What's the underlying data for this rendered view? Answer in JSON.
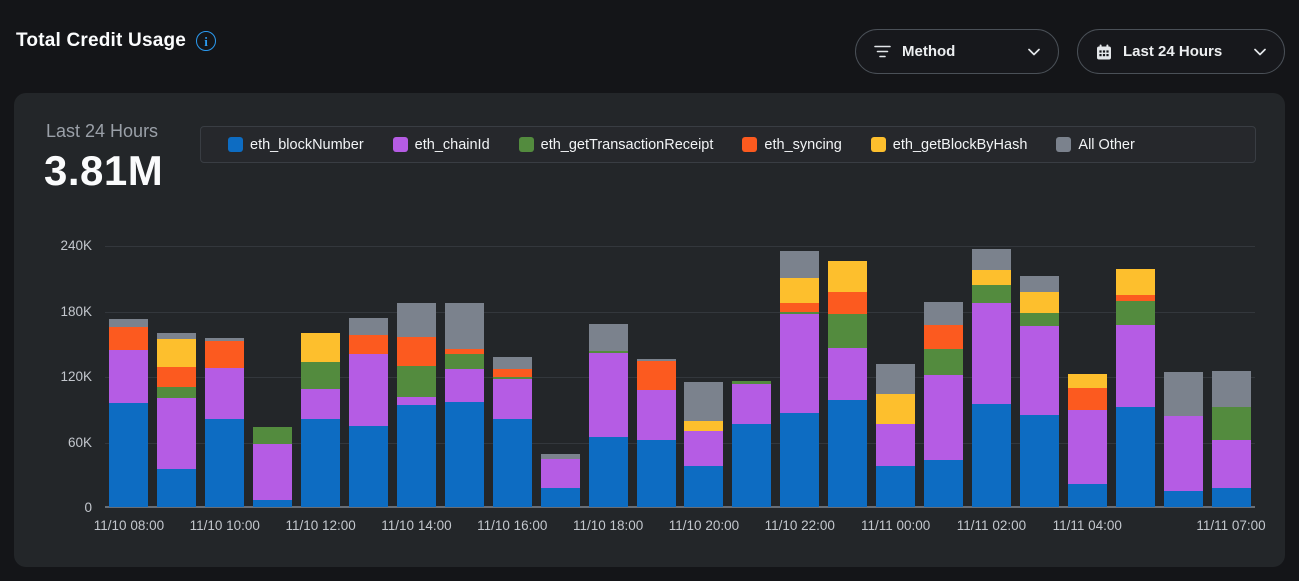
{
  "header": {
    "title": "Total Credit Usage"
  },
  "filters": {
    "method": {
      "label": "Method",
      "icon": "filter-icon"
    },
    "range": {
      "label": "Last 24 Hours",
      "icon": "calendar-icon"
    }
  },
  "summary": {
    "period_label": "Last 24 Hours",
    "total_value": "3.81M"
  },
  "colors": {
    "page_bg": "#141518",
    "card_bg": "#232629",
    "accent_info": "#2b9af0",
    "muted_text": "#9aa0a8",
    "axis_text": "#c3c7cd"
  },
  "chart_data": {
    "type": "bar",
    "stacked": true,
    "title": "Total Credit Usage — Last 24 Hours",
    "unit": "credits",
    "bar_count": 24,
    "ymax_k": 240,
    "ylim": [
      0,
      240000
    ],
    "grid": true,
    "legend_position": "top",
    "yticks": [
      {
        "value_k": 0,
        "label": "0"
      },
      {
        "value_k": 60,
        "label": "60K"
      },
      {
        "value_k": 120,
        "label": "120K"
      },
      {
        "value_k": 180,
        "label": "180K"
      },
      {
        "value_k": 240,
        "label": "240K"
      }
    ],
    "x_tick_labels": [
      {
        "index": 0,
        "label": "11/10 08:00"
      },
      {
        "index": 2,
        "label": "11/10 10:00"
      },
      {
        "index": 4,
        "label": "11/10 12:00"
      },
      {
        "index": 6,
        "label": "11/10 14:00"
      },
      {
        "index": 8,
        "label": "11/10 16:00"
      },
      {
        "index": 10,
        "label": "11/10 18:00"
      },
      {
        "index": 12,
        "label": "11/10 20:00"
      },
      {
        "index": 14,
        "label": "11/10 22:00"
      },
      {
        "index": 16,
        "label": "11/11 00:00"
      },
      {
        "index": 18,
        "label": "11/11 02:00"
      },
      {
        "index": 20,
        "label": "11/11 04:00"
      },
      {
        "index": 23,
        "label": "11/11 07:00"
      }
    ],
    "series": [
      {
        "name": "eth_blockNumber",
        "color": "#0d6cc2",
        "values_k": [
          95,
          35,
          81,
          6,
          81,
          74,
          93,
          96,
          81,
          17,
          64,
          61,
          38,
          76,
          86,
          98,
          38,
          43,
          94,
          84,
          21,
          92,
          15,
          17
        ]
      },
      {
        "name": "eth_chainId",
        "color": "#b55ce4",
        "values_k": [
          49,
          65,
          46,
          52,
          27,
          66,
          8,
          30,
          36,
          27,
          77,
          46,
          32,
          37,
          91,
          48,
          38,
          78,
          93,
          82,
          68,
          75,
          68,
          44
        ]
      },
      {
        "name": "eth_getTransactionReceipt",
        "color": "#538b3e",
        "values_k": [
          0,
          10,
          0,
          15,
          25,
          0,
          28,
          14,
          2,
          0,
          2,
          0,
          0,
          2,
          2,
          31,
          0,
          24,
          16,
          12,
          0,
          22,
          0,
          31
        ]
      },
      {
        "name": "eth_syncing",
        "color": "#fc5a1f",
        "values_k": [
          21,
          18,
          25,
          0,
          0,
          18,
          27,
          5,
          7,
          0,
          0,
          27,
          0,
          0,
          8,
          20,
          0,
          22,
          0,
          0,
          20,
          5,
          0,
          0
        ]
      },
      {
        "name": "eth_getBlockByHash",
        "color": "#fdbf2d",
        "values_k": [
          0,
          26,
          0,
          0,
          26,
          0,
          0,
          0,
          0,
          0,
          0,
          0,
          9,
          0,
          23,
          28,
          28,
          0,
          14,
          19,
          13,
          24,
          0,
          0
        ]
      },
      {
        "name": "All Other",
        "color": "#7b828d",
        "values_k": [
          7,
          5,
          3,
          0,
          0,
          15,
          31,
          42,
          11,
          5,
          25,
          2,
          36,
          0,
          25,
          0,
          27,
          21,
          19,
          15,
          0,
          0,
          41,
          33
        ]
      }
    ]
  }
}
